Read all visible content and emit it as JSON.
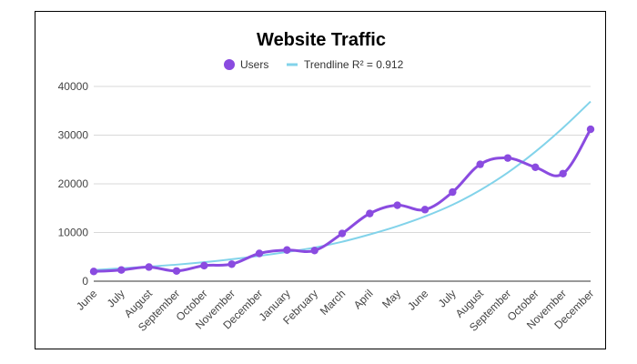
{
  "chart_data": {
    "type": "line",
    "title": "Website Traffic",
    "xlabel": "",
    "ylabel": "",
    "categories": [
      "June",
      "July",
      "August",
      "September",
      "October",
      "November",
      "December",
      "January",
      "February",
      "March",
      "April",
      "May",
      "June",
      "July",
      "August",
      "September",
      "October",
      "November",
      "December"
    ],
    "series": [
      {
        "name": "Users",
        "color": "#8a4be0",
        "values": [
          2000,
          2300,
          2900,
          2100,
          3200,
          3500,
          5700,
          6400,
          6300,
          9800,
          13900,
          15600,
          14700,
          18300,
          24000,
          25300,
          23400,
          22100,
          31200
        ]
      },
      {
        "name": "Trendline R² = 0.912",
        "color": "#82d3ea",
        "type": "trend",
        "values": [
          2300,
          2650,
          3000,
          3400,
          3900,
          4500,
          5200,
          6000,
          6900,
          8100,
          9600,
          11300,
          13300,
          15700,
          18700,
          22300,
          26600,
          31500,
          36900
        ]
      }
    ],
    "ylim": [
      0,
      40000
    ],
    "yticks": [
      "0",
      "10000",
      "20000",
      "30000",
      "40000"
    ],
    "grid": true,
    "legend": "top-center"
  }
}
